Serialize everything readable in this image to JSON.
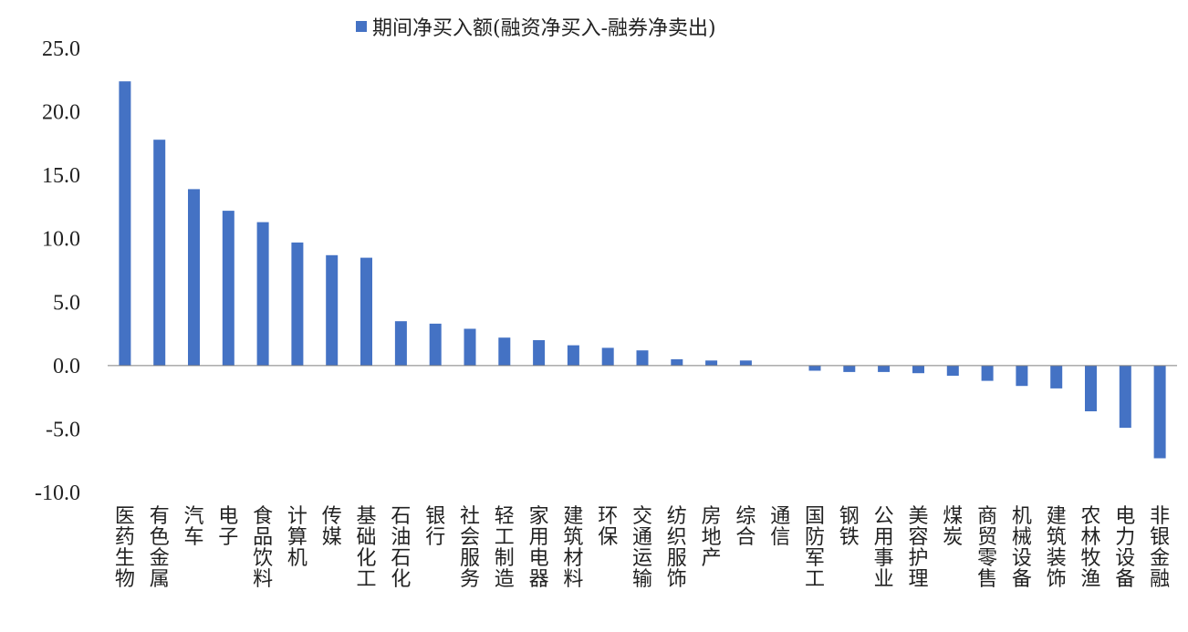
{
  "chart_data": {
    "type": "bar",
    "legend": {
      "label": "期间净买入额(融资净买入-融券净卖出)",
      "position": "top"
    },
    "colors": {
      "bar": "#4472C4",
      "axis": "#7f7f7f",
      "text": "#222222"
    },
    "ylim": [
      -10,
      25
    ],
    "yticks": [
      25,
      20,
      15,
      10,
      5,
      0,
      -5,
      -10
    ],
    "ytick_labels": [
      "25.0",
      "20.0",
      "15.0",
      "10.0",
      "5.0",
      "0.0",
      "-5.0",
      "-10.0"
    ],
    "grid": false,
    "categories": [
      "医药生物",
      "有色金属",
      "汽车",
      "电子",
      "食品饮料",
      "计算机",
      "传媒",
      "基础化工",
      "石油石化",
      "银行",
      "社会服务",
      "轻工制造",
      "家用电器",
      "建筑材料",
      "环保",
      "交通运输",
      "纺织服饰",
      "房地产",
      "综合",
      "通信",
      "国防军工",
      "钢铁",
      "公用事业",
      "美容护理",
      "煤炭",
      "商贸零售",
      "机械设备",
      "建筑装饰",
      "农林牧渔",
      "电力设备",
      "非银金融"
    ],
    "values": [
      22.4,
      17.8,
      13.9,
      12.2,
      11.3,
      9.7,
      8.7,
      8.5,
      3.5,
      3.3,
      2.9,
      2.2,
      2.0,
      1.6,
      1.4,
      1.2,
      0.5,
      0.4,
      0.4,
      0.0,
      -0.4,
      -0.5,
      -0.5,
      -0.6,
      -0.8,
      -1.2,
      -1.6,
      -1.8,
      -3.6,
      -4.9,
      -7.3
    ]
  }
}
